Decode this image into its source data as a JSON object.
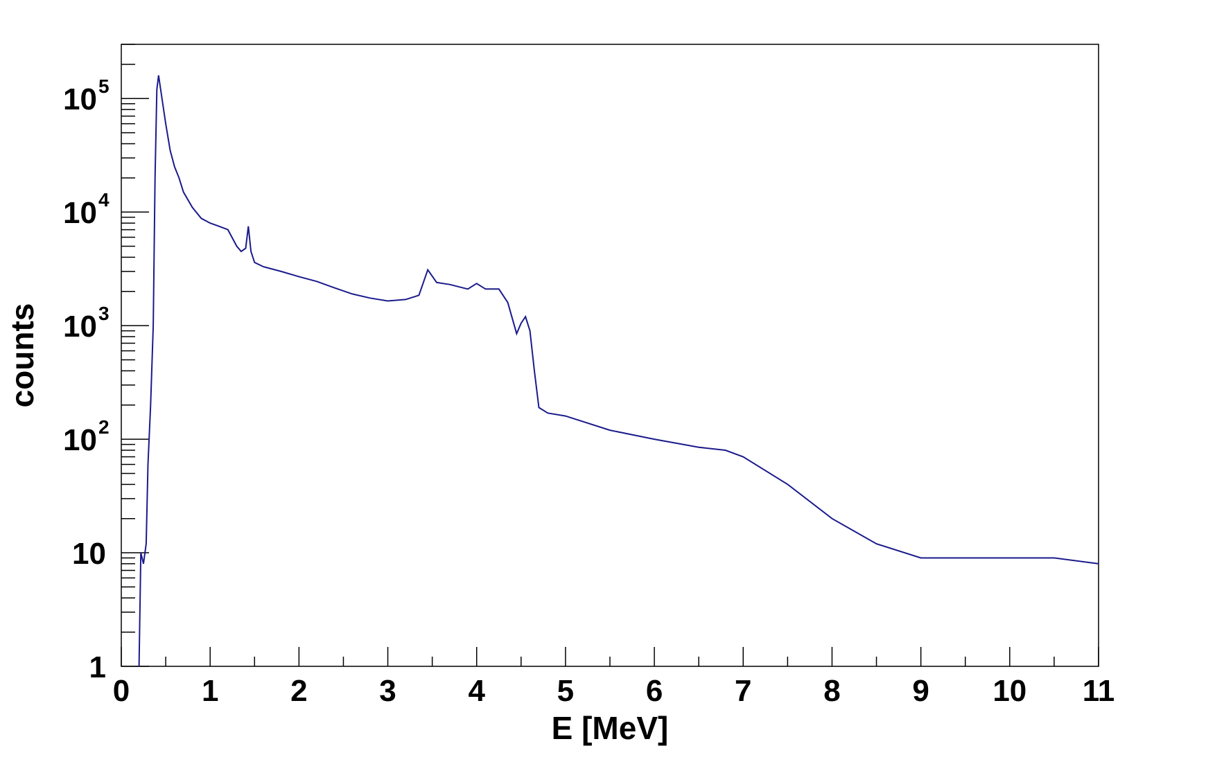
{
  "chart_data": {
    "type": "line",
    "title": "",
    "xlabel": "E [MeV]",
    "ylabel": "counts",
    "xlim": [
      0,
      11
    ],
    "ylim": [
      1,
      300000
    ],
    "yscale": "log",
    "grid": false,
    "line_color": "#1a1a8c",
    "x_ticks": [
      "0",
      "1",
      "2",
      "3",
      "4",
      "5",
      "6",
      "7",
      "8",
      "9",
      "10",
      "11"
    ],
    "y_ticks": [
      {
        "label": "1",
        "value": 1
      },
      {
        "label": "10",
        "value": 10
      },
      {
        "label": "10",
        "exp": "2",
        "value": 100
      },
      {
        "label": "10",
        "exp": "3",
        "value": 1000
      },
      {
        "label": "10",
        "exp": "4",
        "value": 10000
      },
      {
        "label": "10",
        "exp": "5",
        "value": 100000
      }
    ],
    "series": [
      {
        "x": [
          0.2,
          0.22,
          0.25,
          0.28,
          0.3,
          0.33,
          0.36,
          0.38,
          0.4,
          0.42,
          0.45,
          0.5,
          0.55,
          0.6,
          0.65,
          0.7,
          0.8,
          0.9,
          1.0,
          1.1,
          1.2,
          1.3,
          1.35,
          1.4,
          1.43,
          1.46,
          1.5,
          1.6,
          1.8,
          2.0,
          2.2,
          2.4,
          2.6,
          2.8,
          3.0,
          3.2,
          3.35,
          3.45,
          3.55,
          3.7,
          3.9,
          4.0,
          4.1,
          4.25,
          4.35,
          4.45,
          4.5,
          4.55,
          4.6,
          4.65,
          4.7,
          4.8,
          5.0,
          5.5,
          6.0,
          6.5,
          6.8,
          7.0,
          7.5,
          8.0,
          8.5,
          9.0,
          9.5,
          10.0,
          10.5,
          11.0
        ],
        "y": [
          1,
          10,
          8,
          12,
          60,
          200,
          1000,
          20000,
          120000,
          160000,
          110000,
          60000,
          35000,
          25000,
          20000,
          15000,
          11000,
          8800,
          8000,
          7500,
          7000,
          5000,
          4500,
          4800,
          7500,
          4500,
          3600,
          3300,
          3000,
          2700,
          2450,
          2150,
          1900,
          1750,
          1650,
          1700,
          1850,
          3100,
          2400,
          2300,
          2100,
          2350,
          2100,
          2100,
          1600,
          850,
          1050,
          1200,
          900,
          400,
          190,
          170,
          160,
          120,
          100,
          85,
          80,
          70,
          40,
          20,
          12,
          9,
          9,
          9,
          9,
          8
        ]
      }
    ]
  }
}
